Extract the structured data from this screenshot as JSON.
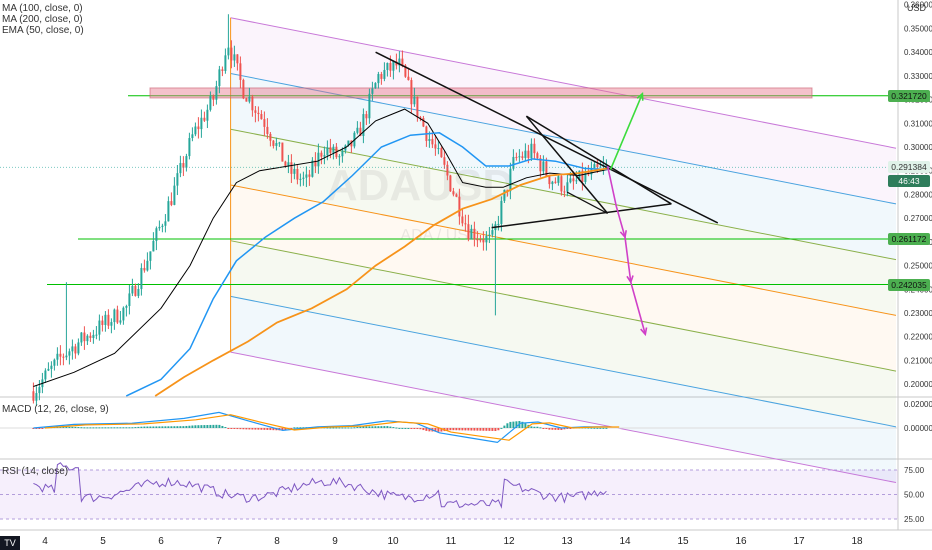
{
  "symbol": {
    "watermark": "ADAUSD",
    "sub": "ADA / USD",
    "currency": "USD"
  },
  "legend": [
    {
      "text": "MA (100, close, 0)"
    },
    {
      "text": "MA (200, close, 0)"
    },
    {
      "text": "EMA (50, close, 0)"
    }
  ],
  "macd_legend": "MACD (12, 26, close, 9)",
  "rsi_legend": "RSI (14, close)",
  "price_axis": {
    "ticks": [
      "0.360000",
      "0.350000",
      "0.340000",
      "0.330000",
      "0.320000",
      "0.310000",
      "0.300000",
      "0.290000",
      "0.280000",
      "0.270000",
      "0.260000",
      "0.250000",
      "0.240000",
      "0.230000",
      "0.220000",
      "0.210000",
      "0.200000"
    ]
  },
  "price_labels": [
    {
      "text": "0.321720",
      "bg": "#4caf50",
      "fg": "#111",
      "price": 0.3216
    },
    {
      "text": "0.291384",
      "bg": "#e0f2e9",
      "fg": "#333",
      "price": 0.2915
    },
    {
      "text": "46:43",
      "bg": "#2e7d5b",
      "fg": "#ffffff",
      "price": 0.2855
    },
    {
      "text": "0.261172",
      "bg": "#4caf50",
      "fg": "#111",
      "price": 0.2612
    },
    {
      "text": "0.242035",
      "bg": "#4caf50",
      "fg": "#111",
      "price": 0.242
    }
  ],
  "macd_axis": [
    "0.020000",
    "0.000000"
  ],
  "rsi_axis": [
    "75.00",
    "50.00",
    "25.00"
  ],
  "x_axis": [
    "4",
    "5",
    "6",
    "7",
    "8",
    "9",
    "10",
    "11",
    "12",
    "13",
    "14",
    "15",
    "16",
    "17",
    "18"
  ],
  "colors": {
    "bull": "#26a69a",
    "bear": "#ef5350",
    "channel": "#c878d8",
    "blue": "#4aa3df",
    "olive": "#8ab04a",
    "orange": "#f7931a",
    "green_line": "#00c000",
    "ma100": "#000000",
    "ma200": "#f7931a",
    "ema50": "#2196f3"
  },
  "chart_data": {
    "type": "candlestick",
    "x": [
      "4",
      "5",
      "6",
      "7",
      "8",
      "9",
      "10",
      "11",
      "12",
      "13",
      "14",
      "15",
      "16",
      "17",
      "18"
    ],
    "ylim": [
      0.195,
      0.362
    ],
    "horizontal_levels": [
      0.3216,
      0.2612,
      0.242
    ],
    "last_price": 0.291384
  }
}
